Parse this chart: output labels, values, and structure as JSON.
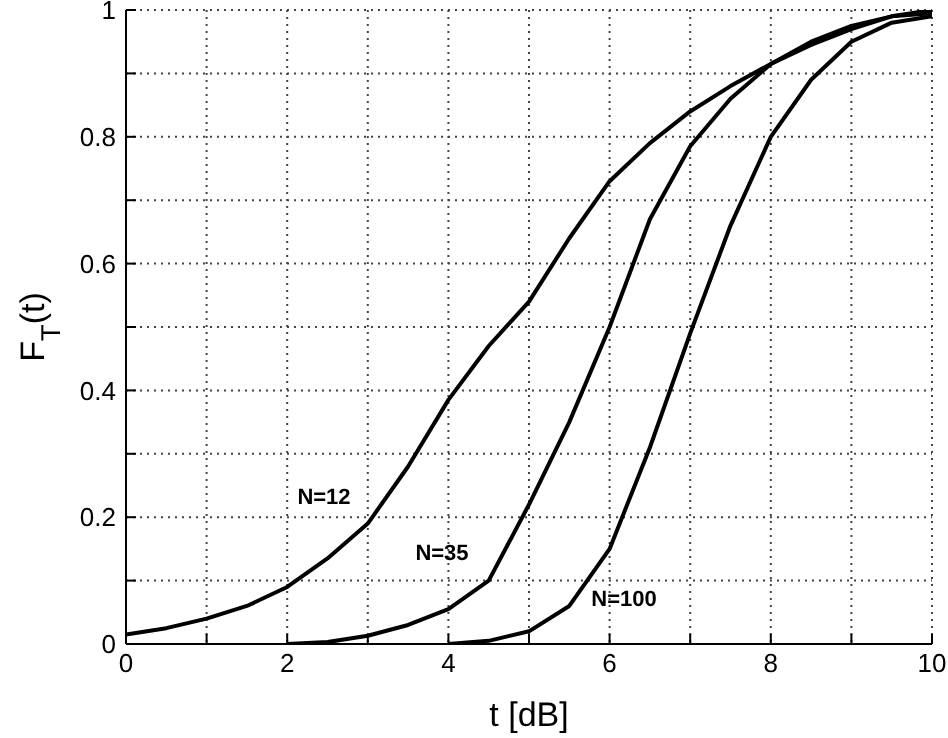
{
  "chart_data": {
    "type": "line",
    "xlabel": "t [dB]",
    "ylabel": "F$_{T}$(t)",
    "xlim": [
      0,
      10
    ],
    "ylim": [
      0,
      1
    ],
    "xticks": [
      0,
      {
        "value": 1,
        "label": null
      },
      2,
      {
        "value": 3,
        "label": null
      },
      4,
      {
        "value": 5,
        "label": null
      },
      6,
      {
        "value": 7,
        "label": null
      },
      8,
      {
        "value": 9,
        "label": null
      },
      10
    ],
    "yticks": [
      0,
      {
        "value": 0.1,
        "label": null
      },
      0.2,
      {
        "value": 0.3,
        "label": null
      },
      0.4,
      {
        "value": 0.5,
        "label": null
      },
      0.6,
      {
        "value": 0.7,
        "label": null
      },
      0.8,
      {
        "value": 0.9,
        "label": null
      },
      1
    ],
    "grid": true,
    "marker": "none",
    "line_style": "solid",
    "x": [
      0,
      0.5,
      1,
      1.5,
      2,
      2.5,
      3,
      3.5,
      4,
      4.5,
      5,
      5.5,
      6,
      6.5,
      7,
      7.5,
      8,
      8.5,
      9,
      9.5,
      10
    ],
    "series": [
      {
        "color": "#000000",
        "values": [
          0.015,
          0.025,
          0.04,
          0.06,
          0.09,
          0.135,
          0.19,
          0.28,
          0.385,
          0.47,
          0.54,
          0.64,
          0.73,
          0.79,
          0.84,
          0.88,
          0.915,
          0.945,
          0.97,
          0.99,
          1
        ]
      },
      {
        "color": "#000000",
        "x": [
          2,
          2.5,
          3,
          3.5,
          4,
          4.5,
          5,
          5.5,
          6,
          6.5,
          7,
          7.5,
          8,
          8.5,
          9,
          9.5,
          10
        ],
        "values": [
          0,
          0.003,
          0.013,
          0.03,
          0.055,
          0.1,
          0.22,
          0.35,
          0.5,
          0.67,
          0.785,
          0.86,
          0.915,
          0.95,
          0.975,
          0.99,
          0.995
        ]
      },
      {
        "color": "#000000",
        "x": [
          4,
          4.5,
          5,
          5.5,
          6,
          6.5,
          7,
          7.5,
          8,
          8.5,
          9,
          9.5,
          10
        ],
        "values": [
          0,
          0.005,
          0.02,
          0.06,
          0.15,
          0.31,
          0.49,
          0.66,
          0.8,
          0.89,
          0.95,
          0.98,
          0.99
        ]
      }
    ],
    "annotations": [
      "N=12",
      "N=35",
      "N=100"
    ]
  }
}
